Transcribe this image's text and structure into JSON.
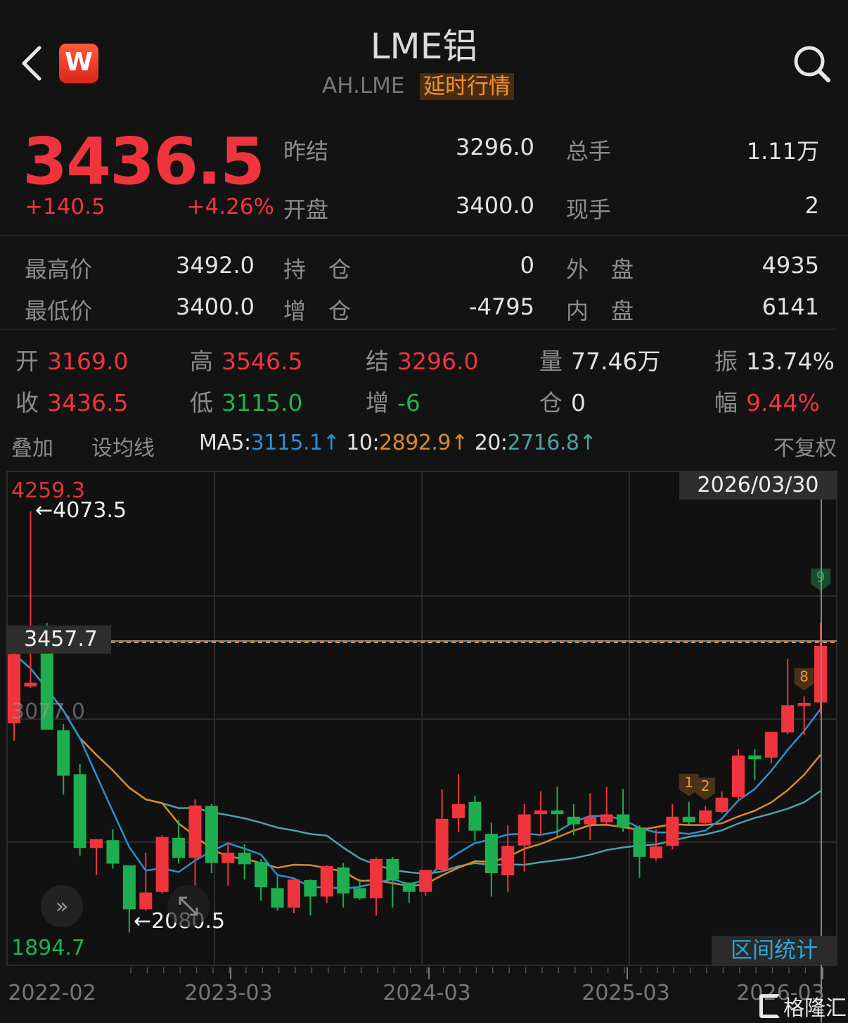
{
  "header": {
    "title": "LME铝",
    "symbol": "AH.LME",
    "delay_badge": "延时行情",
    "logo_letter": "W"
  },
  "quote": {
    "price": "3436.5",
    "change": "+140.5",
    "change_pct": "+4.26%",
    "stats": [
      {
        "label": "昨结",
        "value": "3296.0"
      },
      {
        "label": "总手",
        "value": "1.11万"
      },
      {
        "label": "开盘",
        "value": "3400.0"
      },
      {
        "label": "现手",
        "value": "2"
      },
      {
        "label": "最高价",
        "value": "3492.0"
      },
      {
        "label": "持　仓",
        "value": "0"
      },
      {
        "label": "外　盘",
        "value": "4935"
      },
      {
        "label": "最低价",
        "value": "3400.0"
      },
      {
        "label": "增　仓",
        "value": "-4795"
      },
      {
        "label": "内　盘",
        "value": "6141"
      }
    ]
  },
  "candle_info": [
    {
      "label": "开",
      "value": "3169.0",
      "color": "#f0343e"
    },
    {
      "label": "高",
      "value": "3546.5",
      "color": "#f0343e"
    },
    {
      "label": "结",
      "value": "3296.0",
      "color": "#f0343e"
    },
    {
      "label": "量",
      "value": "77.46万",
      "color": "#e2e2e2"
    },
    {
      "label": "振",
      "value": "13.74%",
      "color": "#e2e2e2"
    },
    {
      "label": "收",
      "value": "3436.5",
      "color": "#f0343e"
    },
    {
      "label": "低",
      "value": "3115.0",
      "color": "#20b251"
    },
    {
      "label": "增",
      "value": "-6",
      "color": "#20b251"
    },
    {
      "label": "仓",
      "value": "0",
      "color": "#e2e2e2"
    },
    {
      "label": "幅",
      "value": "9.44%",
      "color": "#f0343e"
    }
  ],
  "toolbar": {
    "overlay": "叠加",
    "set_ma": "设均线",
    "ma5_label": "MA5:",
    "ma5_value": "3115.1↑",
    "ma10_label": "10:",
    "ma10_value": "2892.9↑",
    "ma20_label": "20:",
    "ma20_value": "2716.8↑",
    "adjust": "不复权"
  },
  "colors": {
    "up": "#f0343e",
    "down": "#1fae4f",
    "ma5": "#2f8fd0",
    "ma10": "#d98a2c",
    "ma20": "#4fa0a6"
  },
  "chart_data": {
    "type": "candlestick",
    "period": "monthly",
    "ylim": [
      1894.7,
      4259.3
    ],
    "y_max_label": "4259.3",
    "y_min_label": "1894.7",
    "crosshair_price": "3457.7",
    "crosshair_date": "2026/03/30",
    "mid_label": "3077.0",
    "high_marker": "4073.5",
    "low_marker": "2080.5",
    "x_tick_labels": [
      "2022-02",
      "2023-03",
      "2024-03",
      "2025-03",
      "2026-03"
    ],
    "grid": true,
    "signal_badges": [
      {
        "text": "1",
        "candle": 42
      },
      {
        "text": "2",
        "candle": 43
      },
      {
        "text": "8",
        "candle": 49
      },
      {
        "text": "9",
        "candle": 50
      }
    ],
    "ohlc": [
      [
        3070,
        3440,
        2988,
        3398
      ],
      [
        3245,
        4073.5,
        3238,
        3262
      ],
      [
        3440,
        3545,
        3040,
        3040
      ],
      [
        3037,
        3067,
        2733,
        2822
      ],
      [
        2829,
        2877,
        2443,
        2480
      ],
      [
        2480,
        2522,
        2353,
        2522
      ],
      [
        2517,
        2569,
        2383,
        2406
      ],
      [
        2398,
        2398,
        2080.5,
        2190
      ],
      [
        2190,
        2458,
        2183,
        2269
      ],
      [
        2272,
        2539,
        2265,
        2532
      ],
      [
        2528,
        2614,
        2406,
        2433
      ],
      [
        2433,
        2710,
        2302,
        2681
      ],
      [
        2679,
        2688,
        2361,
        2409
      ],
      [
        2409,
        2502,
        2302,
        2458
      ],
      [
        2458,
        2498,
        2331,
        2403
      ],
      [
        2413,
        2428,
        2230,
        2294
      ],
      [
        2290,
        2346,
        2183,
        2198
      ],
      [
        2198,
        2331,
        2171,
        2331
      ],
      [
        2328,
        2331,
        2160,
        2250
      ],
      [
        2250,
        2398,
        2220,
        2394
      ],
      [
        2388,
        2409,
        2198,
        2265
      ],
      [
        2290,
        2334,
        2235,
        2242
      ],
      [
        2242,
        2435,
        2160,
        2428
      ],
      [
        2428,
        2438,
        2198,
        2331
      ],
      [
        2316,
        2316,
        2220,
        2272
      ],
      [
        2272,
        2376,
        2254,
        2376
      ],
      [
        2376,
        2759,
        2369,
        2618
      ],
      [
        2621,
        2829,
        2554,
        2688
      ],
      [
        2698,
        2728,
        2513,
        2562
      ],
      [
        2547,
        2599,
        2250,
        2361
      ],
      [
        2351,
        2587,
        2272,
        2490
      ],
      [
        2492,
        2688,
        2369,
        2639
      ],
      [
        2640,
        2748,
        2540,
        2658
      ],
      [
        2658,
        2770,
        2532,
        2640
      ],
      [
        2628,
        2688,
        2540,
        2592
      ],
      [
        2592,
        2740,
        2517,
        2628
      ],
      [
        2602,
        2770,
        2592,
        2639
      ],
      [
        2639,
        2759,
        2557,
        2577
      ],
      [
        2577,
        2587,
        2339,
        2438
      ],
      [
        2431,
        2569,
        2421,
        2487
      ],
      [
        2490,
        2688,
        2473,
        2628
      ],
      [
        2628,
        2698,
        2592,
        2602
      ],
      [
        2599,
        2680,
        2584,
        2658
      ],
      [
        2651,
        2748,
        2643,
        2718
      ],
      [
        2721,
        2948,
        2710,
        2918
      ],
      [
        2918,
        2948,
        2800,
        2900
      ],
      [
        2908,
        3030,
        2881,
        3030
      ],
      [
        3027,
        3376,
        3018,
        3156
      ],
      [
        3152,
        3198,
        3015,
        3167
      ],
      [
        3169,
        3546.5,
        3115,
        3436.5
      ]
    ]
  },
  "chart_buttons": {
    "range_stats": "区间统计"
  },
  "watermark": "格隆汇"
}
